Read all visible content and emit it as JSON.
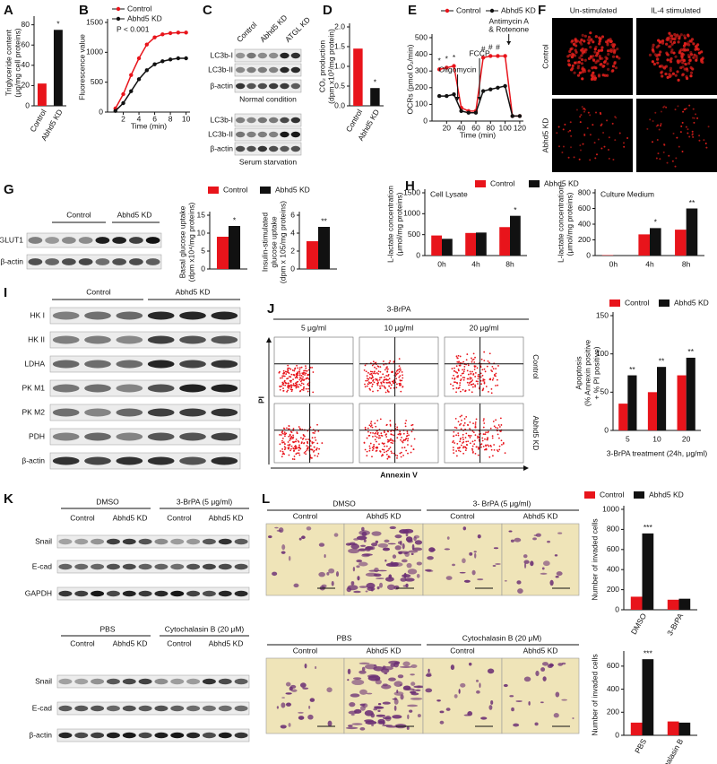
{
  "chart_data": [
    {
      "type": "bar",
      "letter": "A",
      "ylabel": [
        "Triglyceride content",
        "(μg/mg cell proteins)"
      ],
      "categories": [
        "Control",
        "Abhd5 KD"
      ],
      "values": [
        22,
        75
      ],
      "colors": [
        "#e8141b",
        "#111111"
      ],
      "significance": [
        null,
        "*"
      ],
      "ylim": [
        0,
        85
      ],
      "yticks": [
        0,
        20,
        40,
        60,
        80
      ]
    },
    {
      "type": "line",
      "letter": "B",
      "ylabel": [
        "Fluorescence value"
      ],
      "xlabel": "Time (min)",
      "annotation": "P < 0.001",
      "x": [
        1,
        2,
        3,
        4,
        5,
        6,
        7,
        8,
        9,
        10
      ],
      "series": [
        {
          "name": "Control",
          "color": "#e8141b",
          "values": [
            60,
            300,
            620,
            900,
            1130,
            1250,
            1300,
            1320,
            1330,
            1330
          ]
        },
        {
          "name": "Abhd5 KD",
          "color": "#111111",
          "values": [
            20,
            150,
            350,
            550,
            700,
            800,
            850,
            880,
            900,
            900
          ]
        }
      ],
      "xlim": [
        0,
        10.5
      ],
      "xticks": [
        2,
        4,
        6,
        8,
        10
      ],
      "ylim": [
        0,
        1500
      ],
      "yticks": [
        0,
        500,
        1000,
        1500
      ]
    },
    {
      "type": "bar",
      "letter": "D",
      "ylabel": [
        "CO₂ production",
        "(dpm x10³/mg protein)"
      ],
      "categories": [
        "Control",
        "Abhd5 KD"
      ],
      "values": [
        1.45,
        0.45
      ],
      "colors": [
        "#e8141b",
        "#111111"
      ],
      "significance": [
        null,
        "*"
      ],
      "ylim": [
        0,
        2
      ],
      "yticks": [
        {
          "value": 0,
          "label": "0.0"
        },
        0.5,
        {
          "value": 1,
          "label": "1.0"
        },
        1.5,
        {
          "value": 2,
          "label": "2.0"
        }
      ]
    },
    {
      "type": "line",
      "letter": "E",
      "ylabel": [
        "OCRs (pmol O₂/min)"
      ],
      "xlabel": "Time (min)",
      "x": [
        10,
        20,
        30,
        40,
        50,
        60,
        70,
        80,
        90,
        100,
        110,
        120
      ],
      "series": [
        {
          "name": "Control",
          "color": "#e8141b",
          "values": [
            310,
            320,
            330,
            80,
            60,
            60,
            380,
            390,
            390,
            390,
            30,
            30
          ],
          "significance": [
            "*",
            "*",
            "*",
            null,
            null,
            null,
            "#",
            "#",
            "#",
            null,
            null,
            null
          ]
        },
        {
          "name": "Abhd5 KD",
          "color": "#111111",
          "values": [
            150,
            150,
            160,
            60,
            50,
            50,
            180,
            190,
            200,
            210,
            30,
            30
          ]
        }
      ],
      "annotations": [
        {
          "text": [
            "Oligomycin"
          ],
          "x": 35
        },
        {
          "text": [
            "FCCP"
          ],
          "x": 65
        },
        {
          "text": [
            "Antimycin A",
            "& Rotenone"
          ],
          "x": 105
        }
      ],
      "xlim": [
        0,
        125
      ],
      "xticks": [
        20,
        40,
        60,
        80,
        100,
        120
      ],
      "ylim": [
        0,
        500
      ],
      "yticks": [
        0,
        100,
        200,
        300,
        400,
        500
      ]
    },
    {
      "type": "bar",
      "ylabel": [
        "Basal glucose uptake",
        "(dpm x10⁴/mg proteins)"
      ],
      "series": [
        {
          "name": "Control",
          "color": "#e8141b",
          "values": [
            9
          ]
        },
        {
          "name": "Abhd5 KD",
          "color": "#111111",
          "values": [
            12
          ],
          "significance": [
            "*"
          ]
        }
      ],
      "ylim": [
        0,
        15
      ],
      "yticks": [
        0,
        5,
        10,
        15
      ]
    },
    {
      "type": "bar",
      "ylabel": [
        "Insulin-stimulated",
        "glucose uptake",
        "(dpm x 105/mg proteins)"
      ],
      "series": [
        {
          "color": "#e8141b",
          "values": [
            3.1
          ]
        },
        {
          "color": "#111111",
          "values": [
            4.7
          ],
          "significance": [
            "**"
          ]
        }
      ],
      "ylim": [
        0,
        6
      ],
      "yticks": [
        0,
        2,
        4,
        6
      ]
    },
    {
      "type": "bar",
      "letter": "H",
      "title": "Cell Lysate",
      "ylabel": [
        "L-lactate concentration",
        "(μmol/mg proteins)"
      ],
      "categories": [
        "0h",
        "4h",
        "8h"
      ],
      "series": [
        {
          "name": "Control",
          "color": "#e8141b",
          "values": [
            480,
            540,
            680
          ]
        },
        {
          "name": "Abhd5 KD",
          "color": "#111111",
          "values": [
            400,
            550,
            950
          ],
          "significance": [
            null,
            null,
            "*"
          ]
        }
      ],
      "ylim": [
        0,
        1500
      ],
      "yticks": [
        0,
        500,
        1000,
        1500
      ]
    },
    {
      "type": "bar",
      "title": "Culture Medium",
      "ylabel": [
        "L-lactate concentration",
        "(μmol/mg proteins)"
      ],
      "categories": [
        "0h",
        "4h",
        "8h"
      ],
      "series": [
        {
          "color": "#e8141b",
          "values": [
            5,
            270,
            330
          ]
        },
        {
          "color": "#111111",
          "values": [
            5,
            350,
            600
          ],
          "significance": [
            null,
            "*",
            "**"
          ]
        }
      ],
      "ylim": [
        0,
        800
      ],
      "yticks": [
        0,
        200,
        400,
        600,
        800
      ]
    },
    {
      "type": "bar",
      "ylabel": [
        "Apoptosis",
        "(% Annexin positive",
        "+ % PI positive)"
      ],
      "xlabel": "3-BrPA treatment (24h, μg/ml)",
      "categories": [
        "5",
        "10",
        "20"
      ],
      "series": [
        {
          "name": "Control",
          "color": "#e8141b",
          "values": [
            35,
            50,
            72
          ]
        },
        {
          "name": "Abhd5 KD",
          "color": "#111111",
          "values": [
            72,
            83,
            95
          ],
          "significance": [
            "**",
            "**",
            "**"
          ]
        }
      ],
      "ylim": [
        0,
        150
      ],
      "yticks": [
        0,
        50,
        100,
        150
      ]
    },
    {
      "type": "bar",
      "ylabel": [
        "Number of invaded cells"
      ],
      "categories": [
        "DMSO",
        "3-BrPA"
      ],
      "series": [
        {
          "name": "Control",
          "color": "#e8141b",
          "values": [
            130,
            100
          ]
        },
        {
          "name": "Abhd5 KD",
          "color": "#111111",
          "values": [
            760,
            110
          ],
          "significance": [
            "***",
            null
          ]
        }
      ],
      "ylim": [
        0,
        1000
      ],
      "yticks": [
        0,
        200,
        400,
        600,
        800,
        1000
      ]
    },
    {
      "type": "bar",
      "ylabel": [
        "Number of invaded cells"
      ],
      "categories": [
        "PBS",
        "Cytochalasin B"
      ],
      "series": [
        {
          "color": "#e8141b",
          "values": [
            110,
            120
          ]
        },
        {
          "color": "#111111",
          "values": [
            660,
            110
          ],
          "significance": [
            "***",
            null
          ]
        }
      ],
      "ylim": [
        0,
        700
      ],
      "yticks": [
        0,
        200,
        400,
        600
      ]
    }
  ],
  "panels": {
    "C": {
      "letter": "C",
      "columns": [
        "Control",
        "Abhd5 KD",
        "ATGL KD"
      ],
      "sections": [
        {
          "rows": [
            "LC3b-I",
            "LC3b-II",
            "β-actin"
          ],
          "caption": "Normal condition"
        },
        {
          "rows": [
            "LC3b-I",
            "LC3b-II",
            "β-actin"
          ],
          "caption": "Serum starvation"
        }
      ]
    },
    "F": {
      "letter": "F",
      "columns": [
        "Un-stimulated",
        "IL-4 stimulated"
      ],
      "rows": [
        "Control",
        "Abhd5 KD"
      ]
    },
    "G": {
      "letter": "G",
      "groups": [
        "Control",
        "Abhd5 KD"
      ],
      "rows": [
        "GLUT1",
        "β-actin"
      ]
    },
    "I": {
      "letter": "I",
      "groups": [
        "Control",
        "Abhd5 KD"
      ],
      "rows": [
        "HK I",
        "HK II",
        "LDHA",
        "PK M1",
        "PK M2",
        "PDH",
        "β-actin"
      ]
    },
    "J": {
      "letter": "J",
      "treatment": "3-BrPA",
      "columns": [
        "5 μg/ml",
        "10 μg/ml",
        "20 μg/ml"
      ],
      "rows": [
        "Control",
        "Abhd5 KD"
      ],
      "y_axis": "PI",
      "x_axis": "Annexin V"
    },
    "K": {
      "letter": "K",
      "sections": [
        {
          "treatments": [
            "DMSO",
            "3-BrPA (5 μg/ml)"
          ],
          "groups": [
            "Control",
            "Abhd5 KD",
            "Control",
            "Abhd5 KD"
          ],
          "rows": [
            "Snail",
            "E-cad",
            "GAPDH"
          ]
        },
        {
          "treatments": [
            "PBS",
            "Cytochalasin B (20 μM)"
          ],
          "groups": [
            "Control",
            "Abhd5 KD",
            "Control",
            "Abhd5 KD"
          ],
          "rows": [
            "Snail",
            "E-cad",
            "β-actin"
          ]
        }
      ]
    },
    "L": {
      "letter": "L",
      "sections": [
        {
          "treatments": [
            "DMSO",
            "3- BrPA (5 μg/ml)"
          ],
          "groups": [
            "Control",
            "Abhd5 KD",
            "Control",
            "Abhd5 KD"
          ]
        },
        {
          "treatments": [
            "PBS",
            "Cytochalasin B (20 μM)"
          ],
          "groups": [
            "Control",
            "Abhd5 KD",
            "Control",
            "Abhd5 KD"
          ]
        }
      ]
    }
  }
}
